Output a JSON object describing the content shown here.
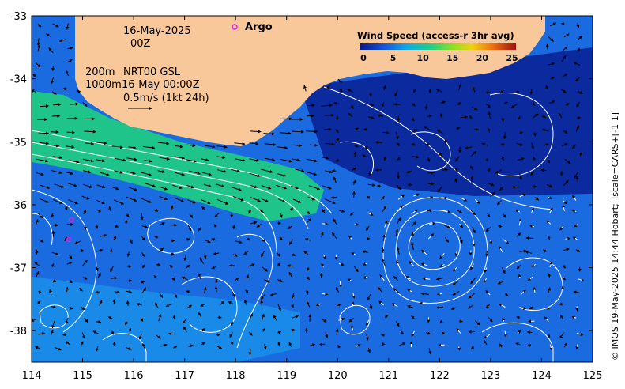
{
  "map": {
    "lon_range": [
      114,
      125
    ],
    "lat_range": [
      -38.5,
      -33
    ],
    "x_ticks": [
      "114",
      "115",
      "116",
      "117",
      "118",
      "119",
      "120",
      "121",
      "122",
      "123",
      "124",
      "125"
    ],
    "y_ticks": [
      "-33",
      "-34",
      "-35",
      "-36",
      "-37",
      "-38"
    ],
    "colors": {
      "land": "#f9c89a",
      "sea_deep": "#0a2a9e",
      "sea_mid": "#1b6be0",
      "sea_green": "#1fc48a",
      "contour": "#ffffff"
    }
  },
  "annotations": {
    "date": "16-May-2025",
    "time": "00Z",
    "depth_200": "200m",
    "product": "NRT00 GSL",
    "depth_1000": "1000m",
    "product_time": "16-May 00:00Z",
    "scale_label": "0.5m/s (1kt 24h)"
  },
  "legend": {
    "title": "Wind Speed (access-r 3hr avg)",
    "ticks": [
      "0",
      "5",
      "10",
      "15",
      "20",
      "25"
    ],
    "range": [
      0,
      25
    ]
  },
  "argo": {
    "label": "Argo",
    "marker_color": "#e020e0"
  },
  "credit": "© IMOS 19-May-2025 14:44 Hobart; Tscale=CARS+[-1 1]"
}
